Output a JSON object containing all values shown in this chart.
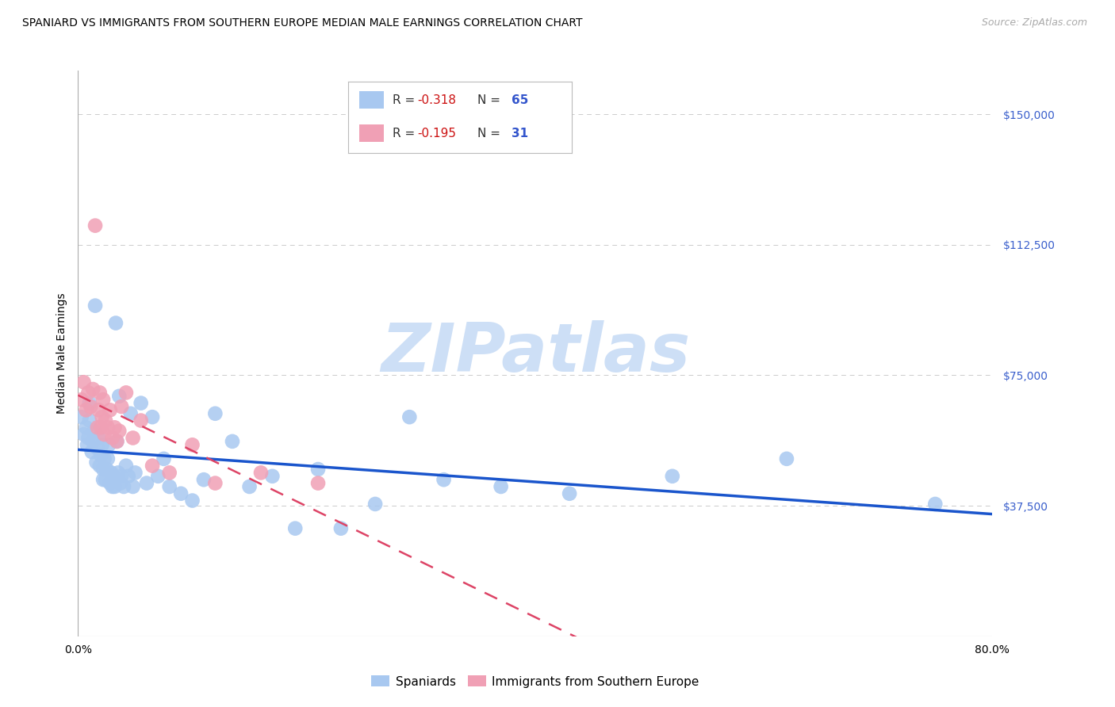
{
  "title": "SPANIARD VS IMMIGRANTS FROM SOUTHERN EUROPE MEDIAN MALE EARNINGS CORRELATION CHART",
  "source": "Source: ZipAtlas.com",
  "ylabel": "Median Male Earnings",
  "xlim": [
    0.0,
    0.8
  ],
  "ylim": [
    0,
    162500
  ],
  "ytick_values": [
    0,
    37500,
    75000,
    112500,
    150000
  ],
  "ytick_labels": [
    "",
    "$37,500",
    "$75,000",
    "$112,500",
    "$150,000"
  ],
  "xtick_positions": [
    0.0,
    0.1,
    0.2,
    0.3,
    0.4,
    0.5,
    0.6,
    0.7,
    0.8
  ],
  "spaniards_color": "#a8c8f0",
  "immigrants_color": "#f0a0b5",
  "trend_spaniards_color": "#1a55cc",
  "trend_immigrants_color": "#dd4466",
  "bg_color": "#ffffff",
  "grid_color": "#cccccc",
  "watermark_color": "#c5daf5",
  "spaniards_x": [
    0.003,
    0.005,
    0.007,
    0.008,
    0.009,
    0.01,
    0.01,
    0.012,
    0.013,
    0.014,
    0.015,
    0.016,
    0.017,
    0.018,
    0.019,
    0.02,
    0.021,
    0.022,
    0.022,
    0.023,
    0.024,
    0.025,
    0.026,
    0.027,
    0.028,
    0.029,
    0.03,
    0.031,
    0.032,
    0.033,
    0.034,
    0.035,
    0.036,
    0.037,
    0.038,
    0.04,
    0.042,
    0.044,
    0.046,
    0.048,
    0.05,
    0.055,
    0.06,
    0.065,
    0.07,
    0.075,
    0.08,
    0.09,
    0.1,
    0.11,
    0.12,
    0.135,
    0.15,
    0.17,
    0.19,
    0.21,
    0.23,
    0.26,
    0.29,
    0.32,
    0.37,
    0.43,
    0.52,
    0.62,
    0.75
  ],
  "spaniards_y": [
    63000,
    58000,
    60000,
    55000,
    57000,
    62000,
    67000,
    53000,
    56000,
    59000,
    95000,
    50000,
    54000,
    57000,
    49000,
    52000,
    55000,
    45000,
    48000,
    51000,
    45000,
    48000,
    51000,
    55000,
    44000,
    47000,
    43000,
    46000,
    43000,
    90000,
    56000,
    47000,
    69000,
    44000,
    46000,
    43000,
    49000,
    46000,
    64000,
    43000,
    47000,
    67000,
    44000,
    63000,
    46000,
    51000,
    43000,
    41000,
    39000,
    45000,
    64000,
    56000,
    43000,
    46000,
    31000,
    48000,
    31000,
    38000,
    63000,
    45000,
    43000,
    41000,
    46000,
    51000,
    38000
  ],
  "immigrants_x": [
    0.003,
    0.005,
    0.007,
    0.009,
    0.011,
    0.013,
    0.015,
    0.017,
    0.018,
    0.019,
    0.02,
    0.021,
    0.022,
    0.023,
    0.024,
    0.026,
    0.028,
    0.03,
    0.032,
    0.034,
    0.036,
    0.038,
    0.042,
    0.048,
    0.055,
    0.065,
    0.08,
    0.1,
    0.12,
    0.16,
    0.21
  ],
  "immigrants_y": [
    68000,
    73000,
    65000,
    70000,
    66000,
    71000,
    118000,
    60000,
    65000,
    70000,
    60000,
    63000,
    68000,
    58000,
    62000,
    60000,
    65000,
    57000,
    60000,
    56000,
    59000,
    66000,
    70000,
    57000,
    62000,
    49000,
    47000,
    55000,
    44000,
    47000,
    44000
  ],
  "title_fontsize": 10,
  "tick_fontsize": 10,
  "legend_fontsize": 11,
  "ylabel_fontsize": 10
}
